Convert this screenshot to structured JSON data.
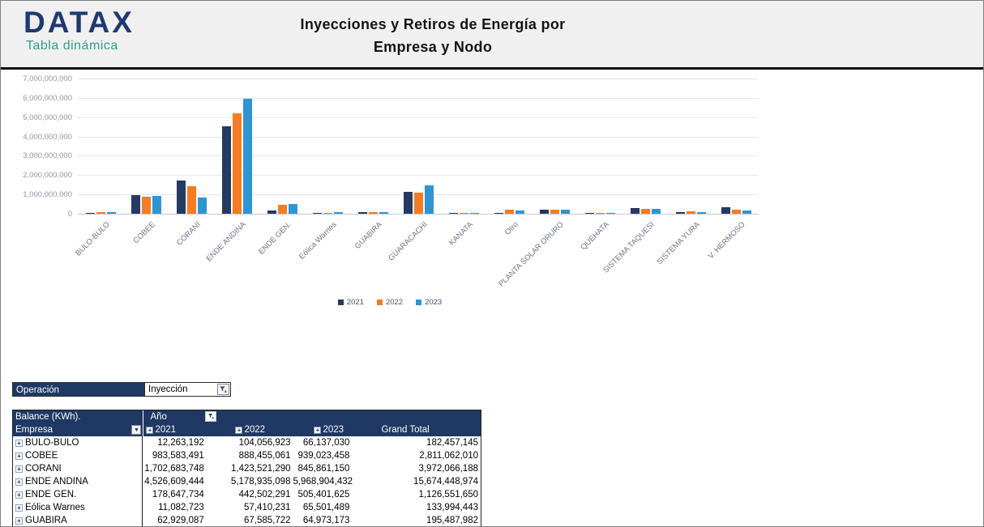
{
  "header": {
    "logo_title": "DATAX",
    "logo_subtitle": "Tabla dinámica",
    "title_line1": "Inyecciones y Retiros de Energía por",
    "title_line2": "Empresa y Nodo"
  },
  "chart_data": {
    "type": "bar",
    "title": "",
    "xlabel": "",
    "ylabel": "",
    "ylim": [
      0,
      7000000000
    ],
    "ytick_step": 1000000000,
    "grid": true,
    "legend_position": "bottom",
    "categories": [
      "BULO-BULO",
      "COBEE",
      "CORANI",
      "ENDE ANDINA",
      "ENDE GEN.",
      "Eólica Warnes",
      "GUABIRA",
      "GUARACACHI",
      "KANATA",
      "Otro",
      "PLANTA SOLAR ORURO",
      "QUEHATA",
      "SISTEMA TAQUESI",
      "SISTEMA YURA",
      "V. HERMOSO"
    ],
    "series": [
      {
        "name": "2021",
        "color": "#263961",
        "values": [
          12263192,
          983583491,
          1702683748,
          4526609444,
          178647734,
          11082723,
          62929087,
          1150000000,
          50000000,
          15000000,
          190000000,
          60000000,
          300000000,
          90000000,
          330000000
        ]
      },
      {
        "name": "2022",
        "color": "#F57C20",
        "values": [
          104056923,
          888455061,
          1423521290,
          5178935098,
          442502291,
          57410231,
          67585722,
          1090000000,
          55000000,
          200000000,
          195000000,
          55000000,
          240000000,
          115000000,
          190000000
        ]
      },
      {
        "name": "2023",
        "color": "#2E95D3",
        "values": [
          66137030,
          939023458,
          845861150,
          5968904432,
          505401625,
          65501489,
          64973173,
          1450000000,
          50000000,
          180000000,
          190000000,
          55000000,
          245000000,
          100000000,
          175000000
        ]
      }
    ]
  },
  "filter": {
    "label": "Operación",
    "value": "Inyección"
  },
  "pivot": {
    "corner_label": "Balance (KWh).",
    "row_field": "Empresa",
    "col_field": "Año",
    "col_headers": [
      "2021",
      "2022",
      "2023",
      "Grand Total"
    ],
    "rows": [
      {
        "label": "BULO-BULO",
        "values": [
          "12,263,192",
          "104,056,923",
          "66,137,030",
          "182,457,145"
        ]
      },
      {
        "label": "COBEE",
        "values": [
          "983,583,491",
          "888,455,061",
          "939,023,458",
          "2,811,062,010"
        ]
      },
      {
        "label": "CORANI",
        "values": [
          "1,702,683,748",
          "1,423,521,290",
          "845,861,150",
          "3,972,066,188"
        ]
      },
      {
        "label": "ENDE ANDINA",
        "values": [
          "4,526,609,444",
          "5,178,935,098",
          "5,968,904,432",
          "15,674,448,974"
        ]
      },
      {
        "label": "ENDE GEN.",
        "values": [
          "178,647,734",
          "442,502,291",
          "505,401,625",
          "1,126,551,650"
        ]
      },
      {
        "label": "Eólica Warnes",
        "values": [
          "11,082,723",
          "57,410,231",
          "65,501,489",
          "133,994,443"
        ]
      },
      {
        "label": "GUABIRA",
        "values": [
          "62,929,087",
          "67,585,722",
          "64,973,173",
          "195,487,982"
        ]
      }
    ]
  },
  "colors": {
    "accent_navy": "#1F3864",
    "teal": "#2F9E8C",
    "bar_2021": "#263961",
    "bar_2022": "#F57C20",
    "bar_2023": "#2E95D3",
    "header_band": "#F0F0F1"
  }
}
